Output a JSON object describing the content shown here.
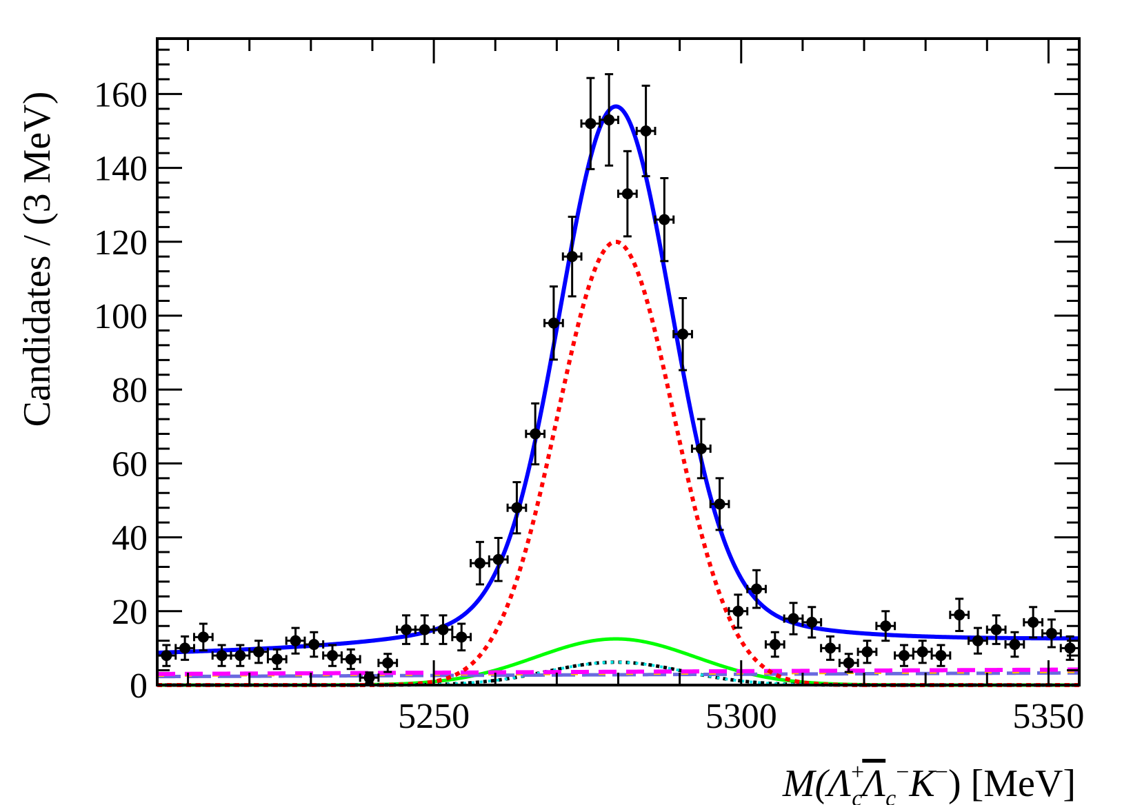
{
  "chart_data": {
    "type": "scatter",
    "title": "",
    "xlabel": {
      "prefix": "M(",
      "lambda_plus": "Λ",
      "sup_plus": "+",
      "sub_c1": "c",
      "lambda_bar": "Λ",
      "sub_c2": "c",
      "sup_minus1": "−",
      "kaon": "K",
      "sup_minus2": "−",
      "suffix": ") [MeV]"
    },
    "ylabel": "Candidates / (3 MeV)",
    "xlim": [
      5205,
      5355
    ],
    "ylim": [
      0,
      175
    ],
    "x_tick_values": [
      5250,
      5300,
      5350
    ],
    "x_tick_labels": [
      "5250",
      "5300",
      "5350"
    ],
    "y_tick_values": [
      0,
      20,
      40,
      60,
      80,
      100,
      120,
      140,
      160
    ],
    "y_tick_labels": [
      "0",
      "20",
      "40",
      "60",
      "80",
      "100",
      "120",
      "140",
      "160"
    ],
    "grid": false,
    "legend": "none",
    "colors": {
      "data": "#000000",
      "total_fit": "#0000ff",
      "signal": "#ff0000",
      "component_green": "#00ff00",
      "component_black_dotted": "#000000",
      "component_cyan_dotted": "#00e5e5",
      "component_magenta_dashed": "#ff00ff",
      "component_orange_dashed": "#ffc000",
      "component_slate_dashed": "#6a6adf"
    },
    "data_points": {
      "x": [
        5206.5,
        5209.5,
        5212.5,
        5215.5,
        5218.5,
        5221.5,
        5224.5,
        5227.5,
        5230.5,
        5233.5,
        5236.5,
        5239.5,
        5242.5,
        5245.5,
        5248.5,
        5251.5,
        5254.5,
        5257.5,
        5260.5,
        5263.5,
        5266.5,
        5269.5,
        5272.5,
        5275.5,
        5278.5,
        5281.5,
        5284.5,
        5287.5,
        5290.5,
        5293.5,
        5296.5,
        5299.5,
        5302.5,
        5305.5,
        5308.5,
        5311.5,
        5314.5,
        5317.5,
        5320.5,
        5323.5,
        5326.5,
        5329.5,
        5332.5,
        5335.5,
        5338.5,
        5341.5,
        5344.5,
        5347.5,
        5350.5,
        5353.5
      ],
      "y": [
        8,
        10,
        13,
        8,
        8,
        9,
        7,
        12,
        11,
        8,
        7,
        2,
        6,
        15,
        15,
        15,
        13,
        33,
        34,
        48,
        68,
        98,
        116,
        152,
        153,
        133,
        150,
        126,
        95,
        64,
        49,
        20,
        26,
        11,
        18,
        17,
        10,
        6,
        9,
        16,
        8,
        9,
        8,
        19,
        12,
        15,
        11,
        17,
        14,
        10
      ]
    },
    "series": [
      {
        "model": "total",
        "mean": 5279.6,
        "sigma": 9.0,
        "amplitude": 147,
        "bkg_start": 7.7,
        "bkg_end": 11.6
      },
      {
        "model": "signal",
        "mean": 5279.6,
        "sigma": 9.5,
        "amplitude": 120
      },
      {
        "model": "green",
        "mean": 5279.6,
        "sigma": 13,
        "amplitude": 12.5
      },
      {
        "model": "black-dotted",
        "mean": 5279.6,
        "sigma": 11,
        "amplitude": 6.2
      },
      {
        "model": "cyan-dotted",
        "mean": 5279.6,
        "sigma": 11,
        "amplitude": 6.2
      },
      {
        "model": "magenta-dashed",
        "start": 3.0,
        "end": 4.2
      },
      {
        "model": "orange-dashed",
        "start": 2.6,
        "end": 3.6
      },
      {
        "model": "slate-dashed",
        "start": 2.3,
        "end": 3.3
      }
    ]
  }
}
